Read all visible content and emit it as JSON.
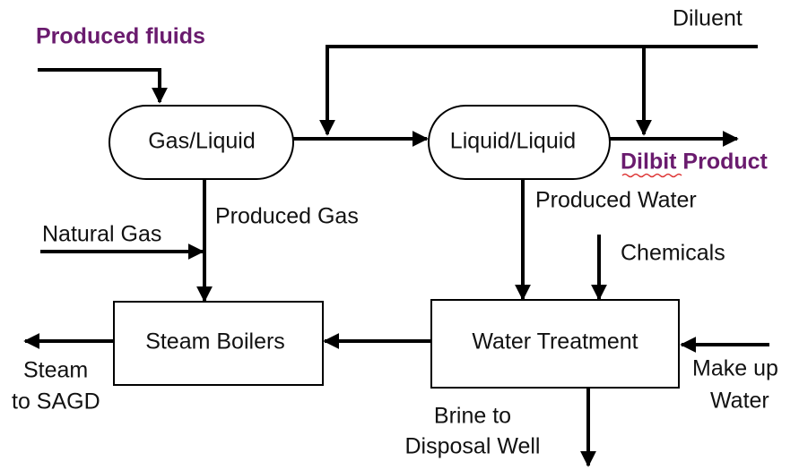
{
  "nodes": [
    {
      "label": "Gas/Liquid"
    },
    {
      "label": "Liquid/Liquid"
    },
    {
      "label": "Steam Boilers"
    },
    {
      "label": "Water Treatment"
    }
  ],
  "labels": {
    "produced_fluids": "Produced fluids",
    "diluent": "Diluent",
    "dilbit_product": "Dilbit Product",
    "produced_water": "Produced Water",
    "produced_gas": "Produced Gas",
    "natural_gas": "Natural Gas",
    "chemicals": "Chemicals",
    "steam": [
      "Steam",
      "to SAGD"
    ],
    "make_up_water": [
      "Make up",
      "Water"
    ],
    "brine": [
      "Brine to",
      "Disposal Well"
    ]
  }
}
